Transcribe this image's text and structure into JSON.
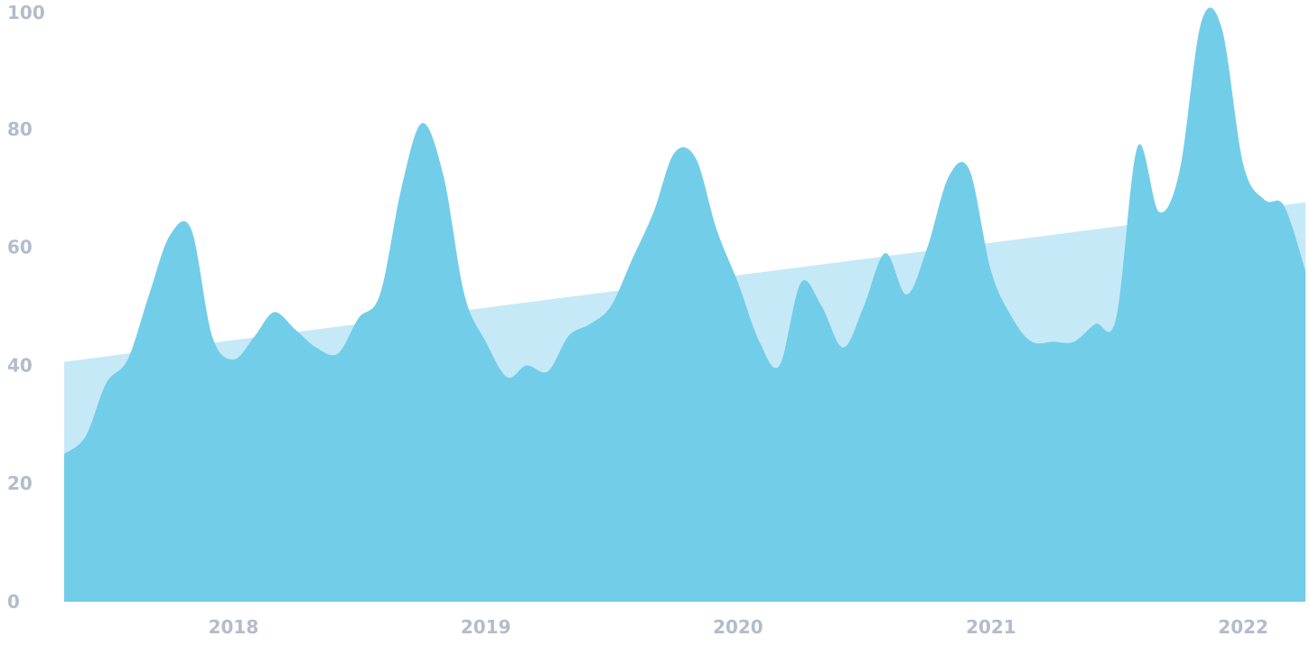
{
  "chart_data": {
    "type": "area",
    "title": "",
    "xlabel": "",
    "ylabel": "",
    "ylim": [
      0,
      100
    ],
    "xlim": [
      "2017-05-01",
      "2022-04-01"
    ],
    "grid": false,
    "legend": "none",
    "y_ticks": [
      "0",
      "20",
      "40",
      "60",
      "80",
      "100"
    ],
    "y_tick_values": [
      0,
      20,
      40,
      60,
      80,
      100
    ],
    "x_ticks": [
      "2018",
      "2019",
      "2020",
      "2021",
      "2022"
    ],
    "x_tick_dates": [
      "2018-01-01",
      "2019-01-01",
      "2020-01-01",
      "2021-01-01",
      "2022-01-01"
    ],
    "colors": {
      "series": "#72cde9",
      "trend": "#c6e9f7",
      "ticks": "#b3bccb",
      "background": "#ffffff"
    },
    "series": [
      {
        "x": [
          "2017-05-01",
          "2017-06-01",
          "2017-07-01",
          "2017-08-01",
          "2017-09-01",
          "2017-10-01",
          "2017-11-01",
          "2017-12-01",
          "2018-01-01",
          "2018-02-01",
          "2018-03-01",
          "2018-04-01",
          "2018-05-01",
          "2018-06-01",
          "2018-07-01",
          "2018-08-01",
          "2018-09-01",
          "2018-10-01",
          "2018-11-01",
          "2018-12-01",
          "2019-01-01",
          "2019-02-01",
          "2019-03-01",
          "2019-04-01",
          "2019-05-01",
          "2019-06-01",
          "2019-07-01",
          "2019-08-01",
          "2019-09-01",
          "2019-10-01",
          "2019-11-01",
          "2019-12-01",
          "2020-01-01",
          "2020-02-01",
          "2020-03-01",
          "2020-04-01",
          "2020-05-01",
          "2020-06-01",
          "2020-07-01",
          "2020-08-01",
          "2020-09-01",
          "2020-10-01",
          "2020-11-01",
          "2020-12-01",
          "2021-01-01",
          "2021-02-01",
          "2021-03-01",
          "2021-04-01",
          "2021-05-01",
          "2021-06-01",
          "2021-07-01",
          "2021-08-01",
          "2021-09-01",
          "2021-10-01",
          "2021-11-01",
          "2021-12-01",
          "2022-01-01",
          "2022-02-01",
          "2022-03-01",
          "2022-04-01"
        ],
        "values": [
          25,
          28,
          37,
          41,
          52,
          62,
          63,
          45,
          41,
          45,
          49,
          46,
          43,
          42,
          48,
          52,
          70,
          81,
          72,
          52,
          44,
          38,
          40,
          39,
          45,
          47,
          50,
          58,
          66,
          76,
          75,
          63,
          54,
          44,
          40,
          54,
          50,
          43,
          50,
          59,
          52,
          60,
          72,
          73,
          56,
          48,
          44,
          44,
          44,
          47,
          48,
          77,
          66,
          73,
          98,
          97,
          74,
          68,
          67,
          56
        ]
      },
      {
        "x": [
          "2017-05-01",
          "2022-04-01"
        ],
        "values": [
          40.6,
          67.6
        ]
      }
    ]
  }
}
